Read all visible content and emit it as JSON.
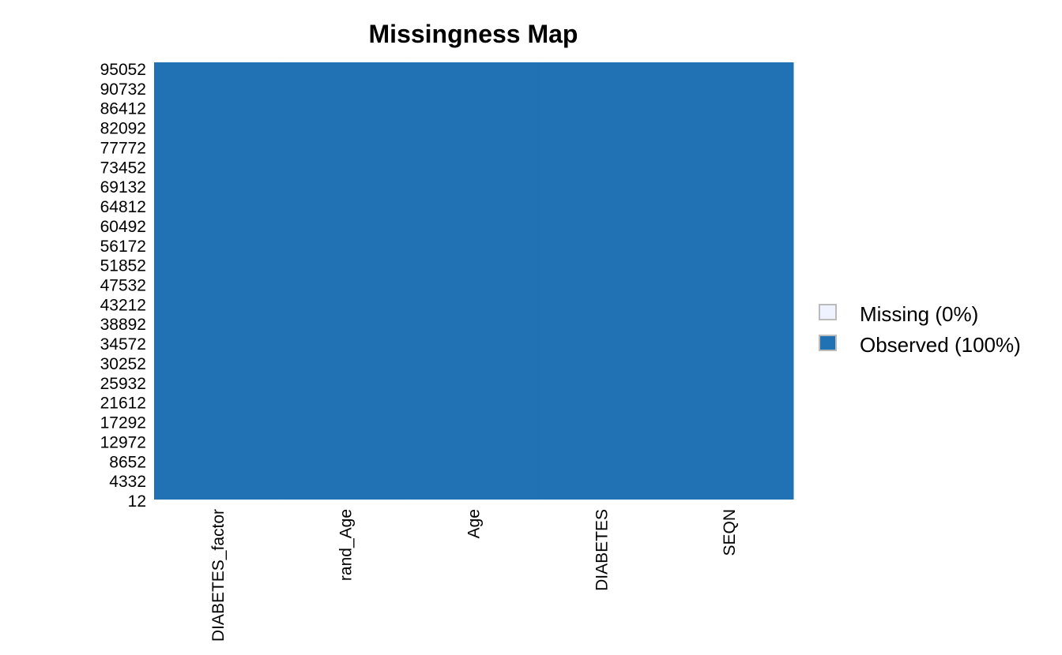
{
  "chart_data": {
    "type": "heatmap",
    "title": "Missingness Map",
    "columns": [
      "DIABETES_factor",
      "rand_Age",
      "Age",
      "DIABETES",
      "SEQN"
    ],
    "y_tick_labels": [
      "95052",
      "90732",
      "86412",
      "82092",
      "77772",
      "73452",
      "69132",
      "64812",
      "60492",
      "56172",
      "51852",
      "47532",
      "43212",
      "38892",
      "34572",
      "30252",
      "25932",
      "21612",
      "17292",
      "12972",
      "8652",
      "4332",
      "12"
    ],
    "missing_fraction": [
      0,
      0,
      0,
      0,
      0
    ],
    "legend": {
      "placement": "right",
      "items": [
        {
          "label": "Missing (0%)",
          "color": "#eff3ff"
        },
        {
          "label": "Observed (100%)",
          "color": "#2171b5"
        }
      ]
    },
    "colors": {
      "observed": "#2171b5",
      "missing": "#eff3ff"
    }
  }
}
